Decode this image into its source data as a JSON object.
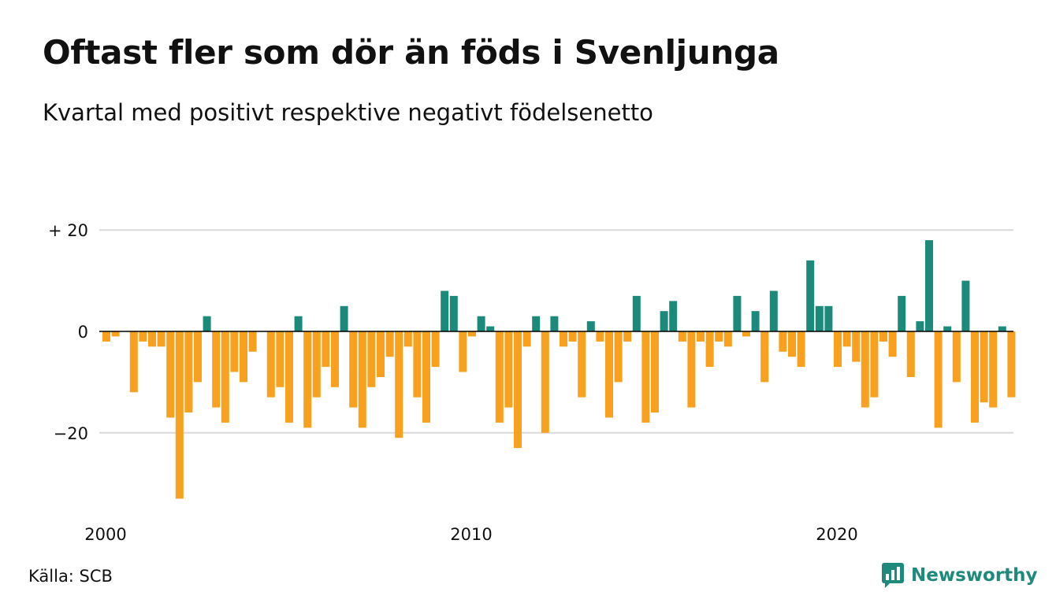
{
  "header": {
    "title": "Oftast fler som dör än föds i Svenljunga",
    "subtitle": "Kvartal med positivt respektive negativt födelsenetto"
  },
  "footer": {
    "source": "Källa: SCB",
    "brand": "Newsworthy",
    "brand_icon": "newsworthy-logo-icon"
  },
  "colors": {
    "positive": "#1b8a7b",
    "negative": "#f7a11f",
    "grid": "#d9d9d9",
    "axis": "#000000",
    "text": "#111111"
  },
  "chart_data": {
    "type": "bar",
    "title": "Oftast fler som dör än föds i Svenljunga",
    "subtitle": "Kvartal med positivt respektive negativt födelsenetto",
    "xlabel": "",
    "ylabel": "",
    "x_start_year": 2000,
    "periods_per_year": 4,
    "ylim": [
      -33,
      20
    ],
    "y_ticks": [
      20,
      0,
      -20
    ],
    "y_tick_labels": [
      "+ 20",
      "0",
      "−20"
    ],
    "x_ticks": [
      2000,
      2010,
      2020
    ],
    "x_tick_labels": [
      "2000",
      "2010",
      "2020"
    ],
    "grid": true,
    "legend": "none",
    "values": [
      -2,
      -1,
      0,
      -12,
      -2,
      -3,
      -3,
      -17,
      -33,
      -16,
      -10,
      3,
      -15,
      -18,
      -8,
      -10,
      -4,
      0,
      -13,
      -11,
      -18,
      3,
      -19,
      -13,
      -7,
      -11,
      5,
      -15,
      -19,
      -11,
      -9,
      -5,
      -21,
      -3,
      -13,
      -18,
      -7,
      8,
      7,
      -8,
      -1,
      3,
      1,
      -18,
      -15,
      -23,
      -3,
      3,
      -20,
      3,
      -3,
      -2,
      -13,
      2,
      -2,
      -17,
      -10,
      -2,
      7,
      -18,
      -16,
      4,
      6,
      -2,
      -15,
      -2,
      -7,
      -2,
      -3,
      7,
      -1,
      4,
      -10,
      8,
      -4,
      -5,
      -7,
      14,
      5,
      5,
      -7,
      -3,
      -6,
      -15,
      -13,
      -2,
      -5,
      7,
      -9,
      2,
      18,
      -19,
      1,
      -10,
      10,
      -18,
      -14,
      -15,
      1,
      -13
    ]
  }
}
